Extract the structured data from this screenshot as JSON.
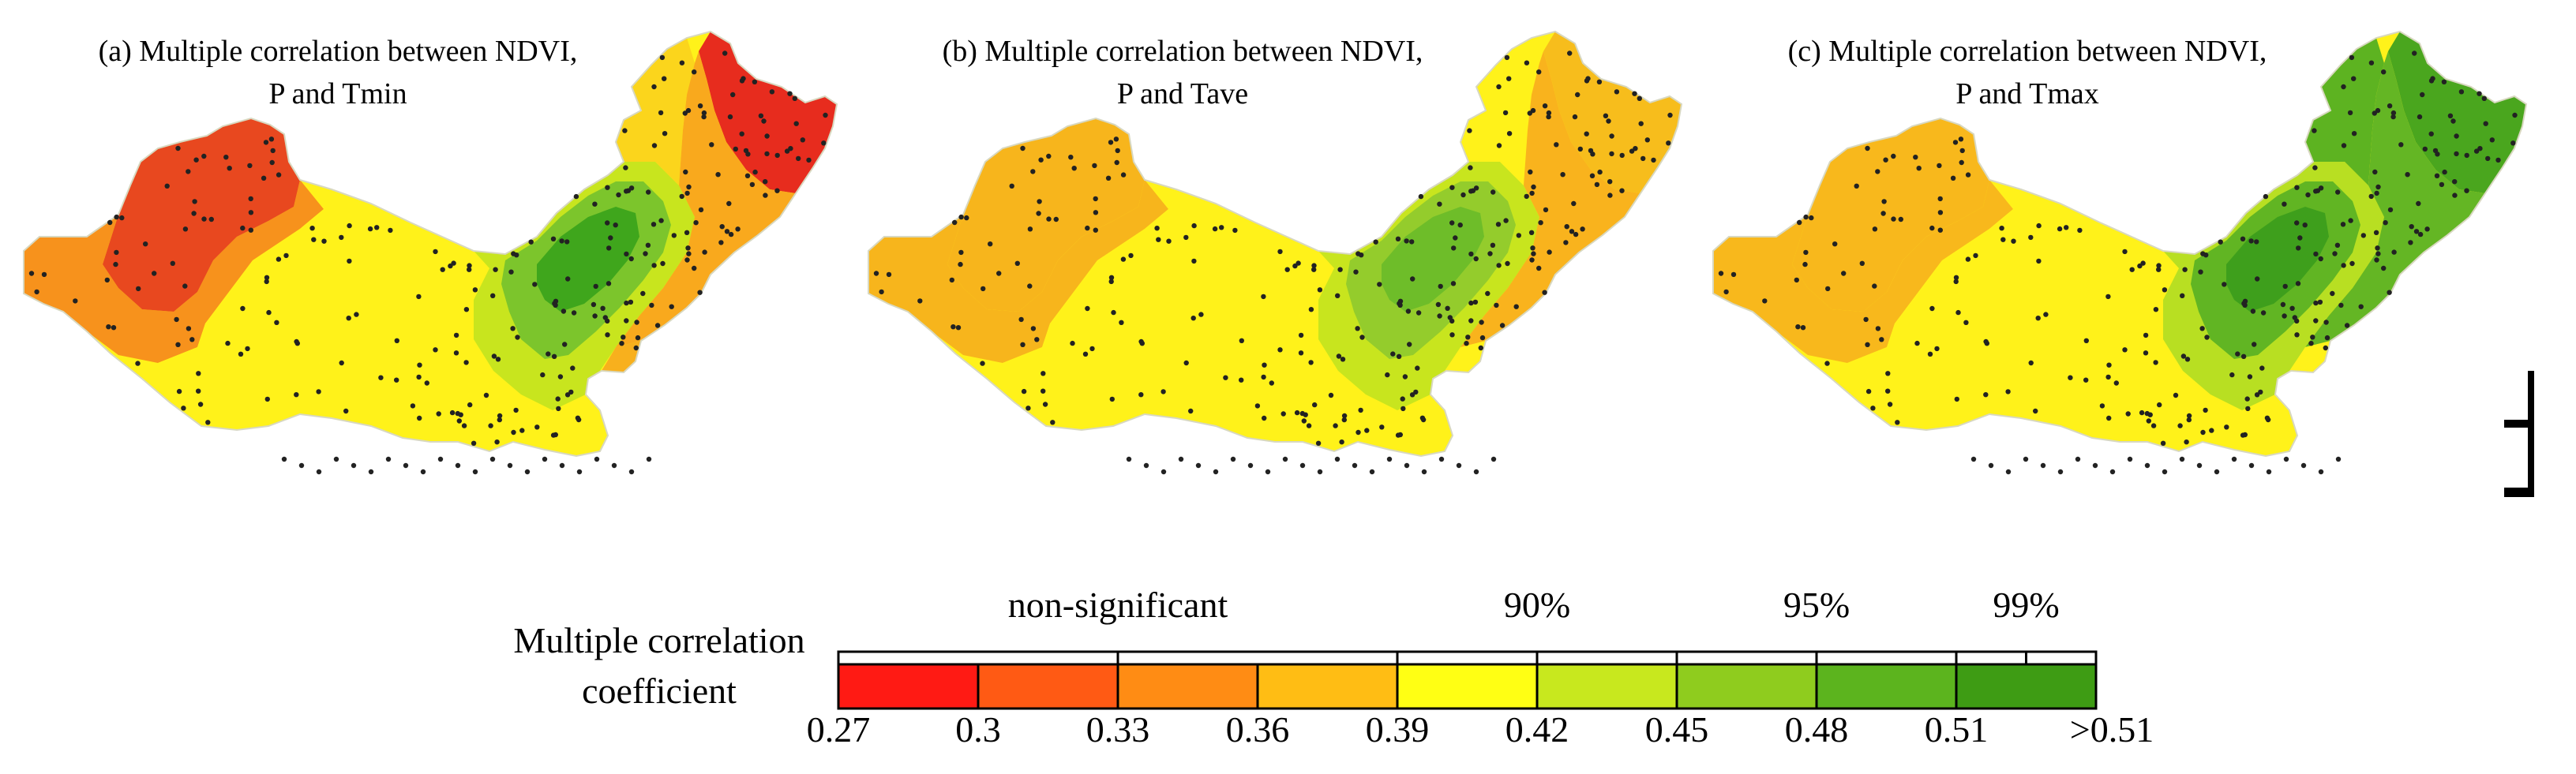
{
  "panels": [
    {
      "id": "a",
      "title_line1": "(a) Multiple correlation between NDVI,",
      "title_line2": "P and Tmin",
      "regions": {
        "west": "#e8481f",
        "west_edge": "#f7921c",
        "central": "#fff21a",
        "east_core": "#3fa61c",
        "east_mid": "#7cc52c",
        "east_edge": "#c8e51e",
        "coast": "#f9a91d",
        "northeast": "#e72c1e",
        "north_strip": "#fbd51c",
        "south": "#f8b01d"
      }
    },
    {
      "id": "b",
      "title_line1": "(b) Multiple correlation between NDVI,",
      "title_line2": "P and Tave",
      "regions": {
        "west": "#f7b51c",
        "west_edge": "#f7b51c",
        "central": "#fff21a",
        "east_core": "#6ebd29",
        "east_mid": "#94cc2c",
        "east_edge": "#c8e51e",
        "coast": "#f9b31d",
        "northeast": "#f7bd1c",
        "north_strip": "#fff21a",
        "south": "#fff21a"
      }
    },
    {
      "id": "c",
      "title_line1": "(c) Multiple correlation between NDVI,",
      "title_line2": "P and Tmax",
      "regions": {
        "west": "#f8b81c",
        "west_edge": "#f8b81c",
        "central": "#fff21a",
        "east_core": "#3e9f1c",
        "east_mid": "#61b523",
        "east_edge": "#b8df22",
        "coast": "#64b624",
        "northeast": "#4aa61e",
        "north_strip": "#5db321",
        "south": "#fff21a"
      }
    }
  ],
  "legend": {
    "title_line1": "Multiple correlation",
    "title_line2": "coefficient",
    "significance": [
      {
        "label": "non-significant",
        "from_index": 0,
        "to_index": 4
      },
      {
        "label": "90%",
        "from_index": 4,
        "to_index": 6
      },
      {
        "label": "95%",
        "from_index": 6,
        "to_index": 8
      },
      {
        "label": "99%",
        "from_index": 8,
        "to_index": 9
      }
    ],
    "colors": [
      "#ff1a14",
      "#ff5a14",
      "#ff8c14",
      "#ffbd14",
      "#ffff14",
      "#c8e81e",
      "#8fcc1e",
      "#5cb41e",
      "#3e9c14"
    ],
    "tick_labels": [
      "0.27",
      "0.3",
      "0.33",
      "0.36",
      "0.39",
      "0.42",
      "0.45",
      "0.48",
      "0.51",
      ">0.51"
    ]
  }
}
